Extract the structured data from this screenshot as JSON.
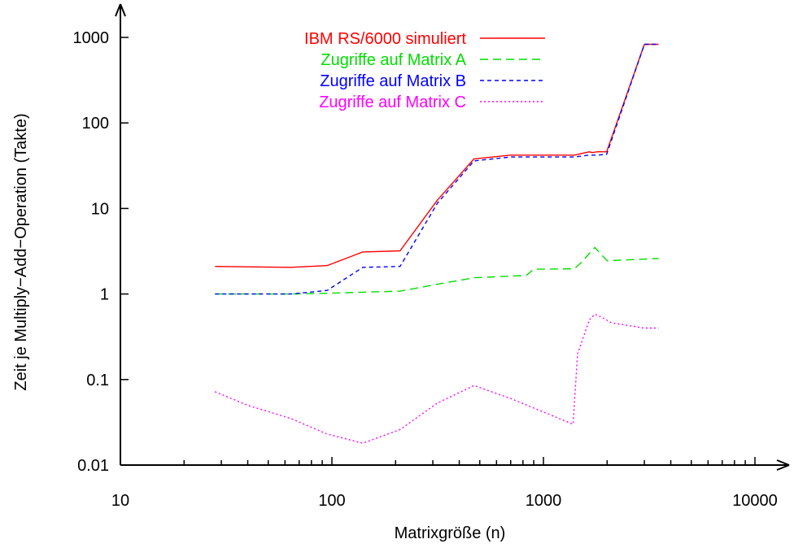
{
  "chart_data": {
    "type": "line",
    "title": "",
    "xlabel": "Matrixgröße (n)",
    "ylabel": "Zeit je Multiply−Add−Operation (Takte)",
    "xscale": "log",
    "yscale": "log",
    "xlim": [
      10,
      10000
    ],
    "ylim": [
      0.01,
      1000
    ],
    "x_ticks": [
      "10",
      "100",
      "1000",
      "10000"
    ],
    "y_ticks": [
      "0.01",
      "0.1",
      "1",
      "10",
      "100",
      "1000"
    ],
    "grid": false,
    "legend": "top-center",
    "series": [
      {
        "name": "IBM RS/6000 simuliert",
        "color": "#ff0000",
        "dash": "solid",
        "x": [
          28,
          64,
          95,
          140,
          210,
          315,
          470,
          700,
          1400,
          1650,
          1700,
          1800,
          1990,
          3000,
          3500
        ],
        "y": [
          2.1,
          2.05,
          2.15,
          3.1,
          3.2,
          12.5,
          38,
          42,
          42,
          46,
          45,
          46,
          46,
          830,
          830
        ]
      },
      {
        "name": "Zugriffe auf Matrix A",
        "color": "#00dd00",
        "dash": "dashed",
        "x": [
          28,
          64,
          95,
          140,
          210,
          315,
          470,
          700,
          830,
          900,
          1400,
          1500,
          1750,
          2000,
          3500
        ],
        "y": [
          1.0,
          1.0,
          1.02,
          1.05,
          1.08,
          1.3,
          1.55,
          1.62,
          1.65,
          1.95,
          1.97,
          2.3,
          3.5,
          2.45,
          2.6
        ]
      },
      {
        "name": "Zugriffe auf Matrix B",
        "color": "#0000ff",
        "dash": "short-dashed",
        "x": [
          28,
          64,
          95,
          140,
          210,
          315,
          470,
          700,
          1400,
          1650,
          1700,
          1800,
          1990,
          3000,
          3500
        ],
        "y": [
          1.0,
          1.0,
          1.1,
          2.05,
          2.1,
          11.5,
          36,
          40,
          40,
          42,
          42,
          42,
          43,
          830,
          830
        ]
      },
      {
        "name": "Zugriffe auf Matrix C",
        "color": "#ff00ff",
        "dash": "dotted",
        "x": [
          28,
          40,
          64,
          95,
          140,
          210,
          315,
          470,
          700,
          1380,
          1450,
          1650,
          1750,
          1900,
          2100,
          3000,
          3500
        ],
        "y": [
          0.072,
          0.05,
          0.035,
          0.023,
          0.018,
          0.026,
          0.053,
          0.085,
          0.06,
          0.03,
          0.2,
          0.5,
          0.58,
          0.53,
          0.46,
          0.4,
          0.4
        ]
      }
    ]
  }
}
